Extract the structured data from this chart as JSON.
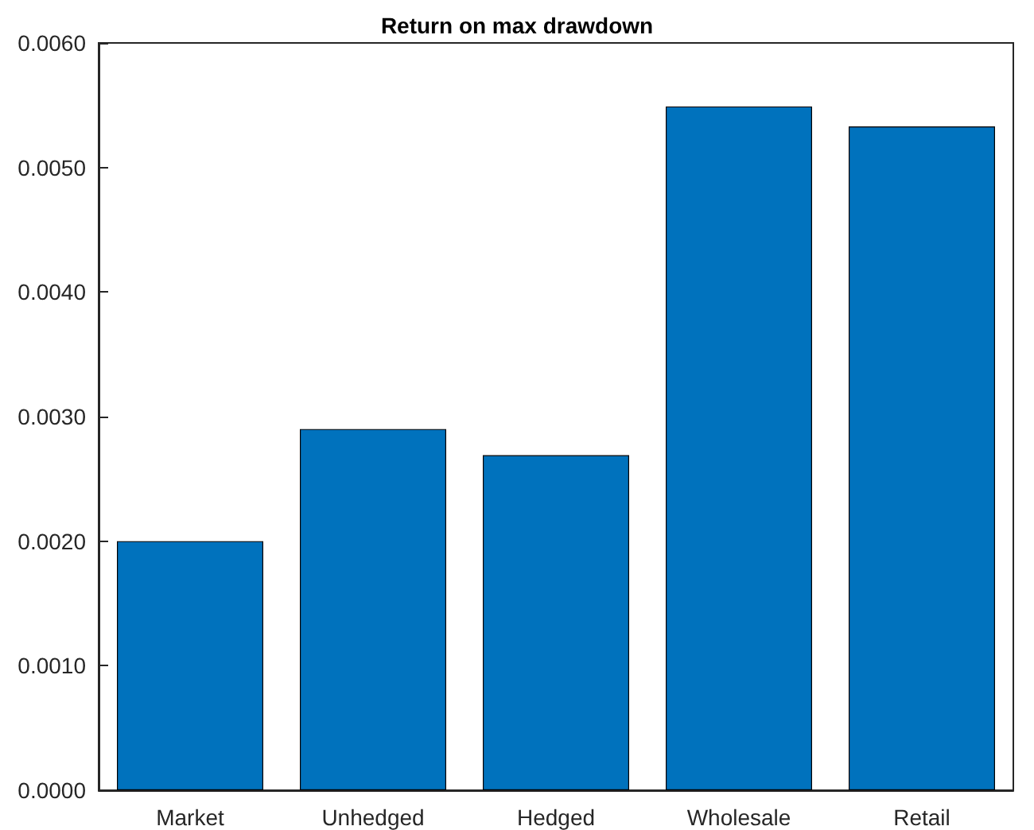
{
  "chart_data": {
    "type": "bar",
    "title": "Return on max drawdown",
    "categories": [
      "Market",
      "Unhedged",
      "Hedged",
      "Wholesale",
      "Retail"
    ],
    "values": [
      0.002,
      0.0029,
      0.00269,
      0.00549,
      0.00533
    ],
    "color": "#0072bd",
    "ylim": [
      0,
      0.006
    ],
    "yticks": [
      {
        "value": 0,
        "label": "0.0000"
      },
      {
        "value": 0.001,
        "label": "0.0010"
      },
      {
        "value": 0.002,
        "label": "0.0020"
      },
      {
        "value": 0.003,
        "label": "0.0030"
      },
      {
        "value": 0.004,
        "label": "0.0040"
      },
      {
        "value": 0.005,
        "label": "0.0050"
      },
      {
        "value": 0.006,
        "label": "0.0060"
      }
    ],
    "grid": false
  }
}
